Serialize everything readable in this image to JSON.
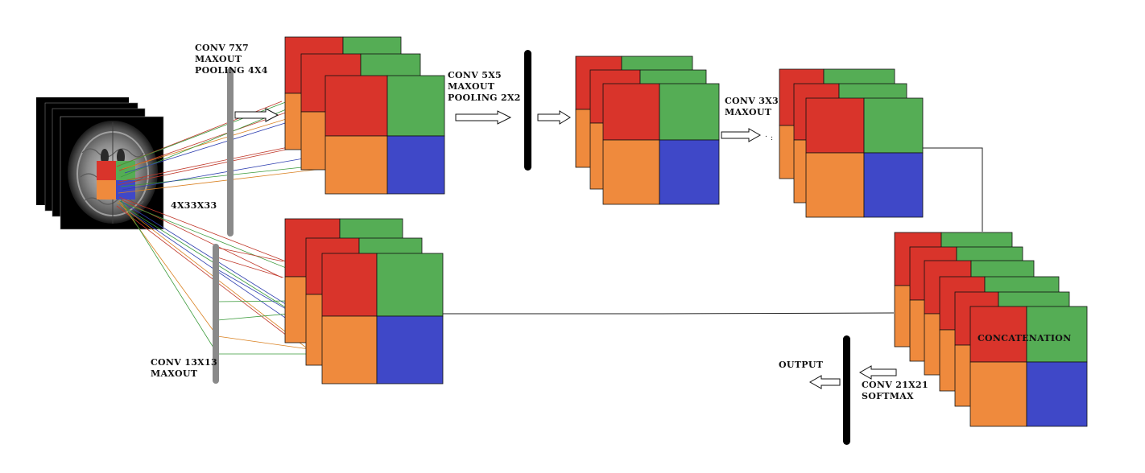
{
  "labels": {
    "conv7": [
      "CONV 7X7",
      "MAXOUT",
      "POOLING 4X4"
    ],
    "conv5": [
      "CONV 5X5",
      "MAXOUT",
      "POOLING 2X2"
    ],
    "conv3": [
      "CONV 3X3",
      "MAXOUT"
    ],
    "input_size": "4X33X33",
    "conv13": [
      "CONV 13X13",
      "MAXOUT"
    ],
    "concat": "CONCATENATION",
    "output": "OUTPUT",
    "conv21": [
      "CONV 21X21",
      "SOFTMAX"
    ]
  },
  "colors": {
    "red": "#d9342b",
    "green": "#55ad55",
    "orange": "#ef8a3d",
    "blue": "#3f48c8",
    "bar_gray": "#8a8a8a",
    "bar_black": "#000000"
  }
}
